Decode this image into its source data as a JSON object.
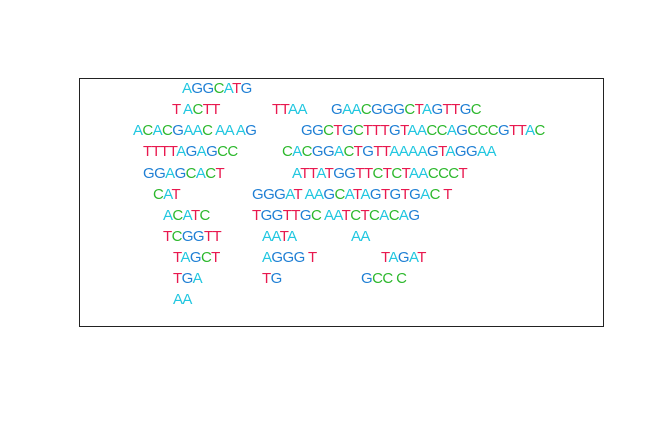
{
  "palette": {
    "A": "#22c7e0",
    "C": "#2db82d",
    "G": "#1f7fd4",
    "T": "#e8194f"
  },
  "rows": [
    [
      "AGGCATG"
    ],
    [
      "T ACTT",
      "TTAA",
      "GAACGGGCTAGTTGC"
    ],
    [
      "ACACGAAC AA AG",
      "GGCTGCTTTGTAACCAGCCCGTTAC"
    ],
    [
      "TTTTAGAGCC",
      "CACGGACTGTTAAAAGTAGGAA"
    ],
    [
      "GGAGCACT",
      "ATTATGGTTCTCTAACCCT"
    ],
    [
      "CAT",
      "GGGAT AAGCATAGTGTGAC T"
    ],
    [
      "ACATC",
      "TGGTTGC AATCTCACAG"
    ],
    [
      "TCGGTT",
      "AATA",
      "AA"
    ],
    [
      "TAGCT",
      "AGGG T",
      "TAGAT"
    ],
    [
      "TGA",
      "TG",
      "GCC C"
    ],
    [
      "AA"
    ]
  ]
}
